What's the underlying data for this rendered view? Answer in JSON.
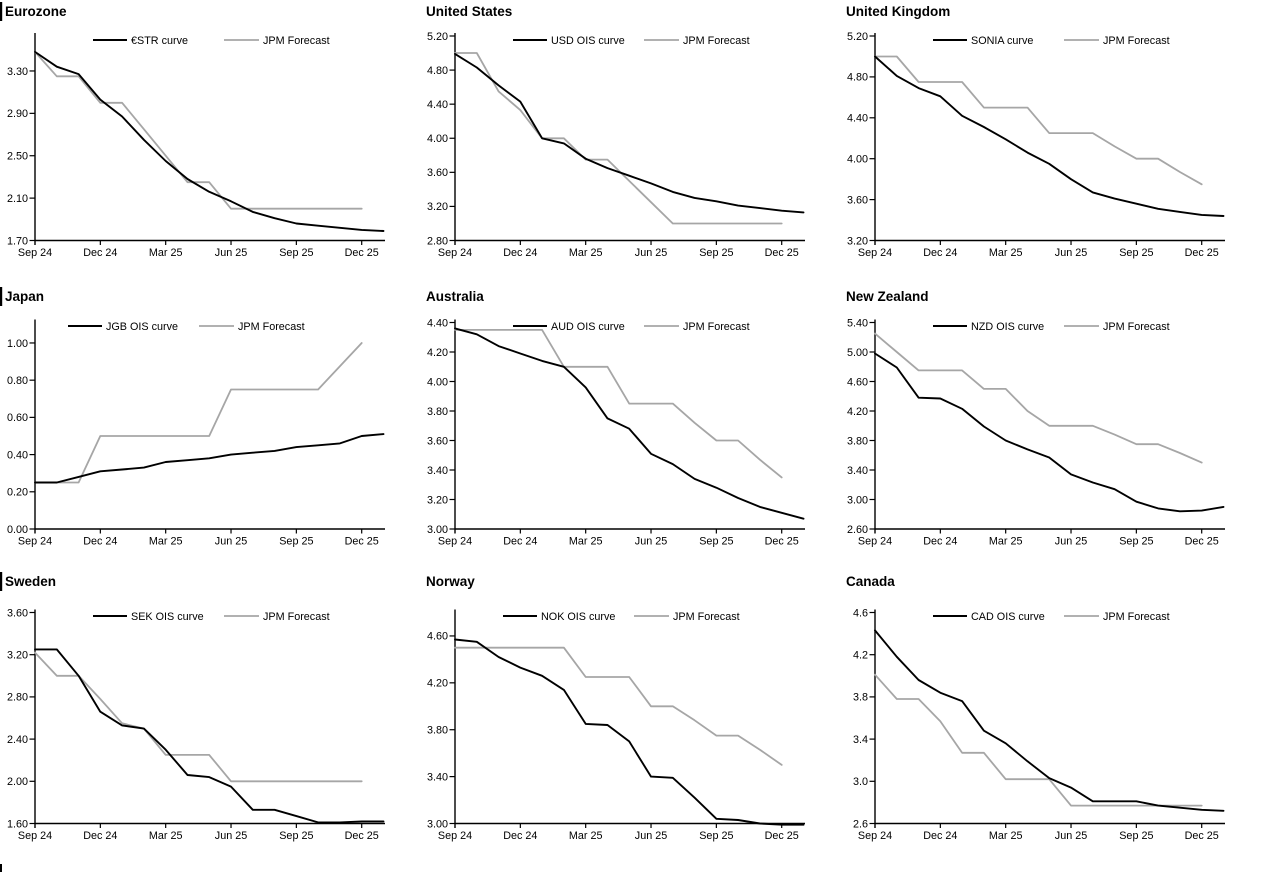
{
  "page": {
    "background": "#ffffff",
    "line_black": "#000000",
    "line_gray": "#a6a6a6"
  },
  "x_axis": {
    "tick_labels": [
      "Sep 24",
      "Dec 24",
      "Mar 25",
      "Jun 25",
      "Sep 25",
      "Dec 25"
    ],
    "tick_positions": [
      0,
      3,
      6,
      9,
      12,
      15
    ]
  },
  "chart_data": [
    {
      "type": "line",
      "title": "Eurozone",
      "left_edge_bar": true,
      "ylim": [
        1.7,
        3.63
      ],
      "y_ticks": [
        3.3,
        2.9,
        2.5,
        2.1,
        1.7
      ],
      "y_decimals": 2,
      "legend_position": "top-center",
      "grid": false,
      "series": [
        {
          "name": "€STR curve",
          "color": "#000000",
          "values": [
            3.48,
            3.34,
            3.27,
            3.03,
            2.87,
            2.65,
            2.45,
            2.28,
            2.16,
            2.07,
            1.97,
            1.91,
            1.86,
            1.84,
            1.82,
            1.8,
            1.79
          ]
        },
        {
          "name": "JPM Forecast",
          "color": "#a6a6a6",
          "values": [
            3.48,
            3.25,
            3.25,
            3.0,
            3.0,
            2.75,
            2.5,
            2.25,
            2.25,
            2.0,
            2.0,
            2.0,
            2.0,
            2.0,
            2.0,
            2.0
          ]
        }
      ]
    },
    {
      "type": "line",
      "title": "United States",
      "left_edge_bar": false,
      "ylim": [
        2.8,
        5.2
      ],
      "y_ticks": [
        5.2,
        4.8,
        4.4,
        4.0,
        3.6,
        3.2,
        2.8
      ],
      "y_decimals": 2,
      "legend_position": "top-center",
      "grid": false,
      "series": [
        {
          "name": "USD OIS curve",
          "color": "#000000",
          "values": [
            4.99,
            4.83,
            4.62,
            4.43,
            4.0,
            3.94,
            3.76,
            3.65,
            3.56,
            3.47,
            3.37,
            3.3,
            3.26,
            3.21,
            3.18,
            3.15,
            3.13
          ]
        },
        {
          "name": "JPM Forecast",
          "color": "#a6a6a6",
          "values": [
            5.0,
            5.0,
            4.55,
            4.33,
            4.0,
            4.0,
            3.75,
            3.75,
            3.5,
            3.25,
            3.0,
            3.0,
            3.0,
            3.0,
            3.0,
            3.0
          ]
        }
      ]
    },
    {
      "type": "line",
      "title": "United Kingdom",
      "left_edge_bar": false,
      "ylim": [
        3.2,
        5.2
      ],
      "y_ticks": [
        5.2,
        4.8,
        4.4,
        4.0,
        3.6,
        3.2
      ],
      "y_decimals": 2,
      "legend_position": "top-center",
      "grid": false,
      "series": [
        {
          "name": "SONIA curve",
          "color": "#000000",
          "values": [
            5.0,
            4.81,
            4.69,
            4.61,
            4.42,
            4.31,
            4.19,
            4.06,
            3.95,
            3.8,
            3.67,
            3.61,
            3.56,
            3.51,
            3.48,
            3.45,
            3.44
          ]
        },
        {
          "name": "JPM Forecast",
          "color": "#a6a6a6",
          "values": [
            5.0,
            5.0,
            4.75,
            4.75,
            4.75,
            4.5,
            4.5,
            4.5,
            4.25,
            4.25,
            4.25,
            4.12,
            4.0,
            4.0,
            3.87,
            3.75
          ]
        }
      ]
    },
    {
      "type": "line",
      "title": "Japan",
      "left_edge_bar": true,
      "ylim": [
        0.0,
        1.11
      ],
      "y_ticks": [
        1.0,
        0.8,
        0.6,
        0.4,
        0.2,
        0.0
      ],
      "y_decimals": 2,
      "legend_position": "top-center",
      "grid": false,
      "series": [
        {
          "name": "JGB OIS curve",
          "color": "#000000",
          "values": [
            0.25,
            0.25,
            0.28,
            0.31,
            0.32,
            0.33,
            0.36,
            0.37,
            0.38,
            0.4,
            0.41,
            0.42,
            0.44,
            0.45,
            0.46,
            0.5,
            0.51
          ]
        },
        {
          "name": "JPM Forecast",
          "color": "#a6a6a6",
          "values": [
            0.25,
            0.25,
            0.25,
            0.5,
            0.5,
            0.5,
            0.5,
            0.5,
            0.5,
            0.75,
            0.75,
            0.75,
            0.75,
            0.75,
            0.875,
            1.0
          ]
        }
      ]
    },
    {
      "type": "line",
      "title": "Australia",
      "left_edge_bar": false,
      "ylim": [
        3.0,
        4.4
      ],
      "y_ticks": [
        4.4,
        4.2,
        4.0,
        3.8,
        3.6,
        3.4,
        3.2,
        3.0
      ],
      "y_decimals": 2,
      "legend_position": "top-center",
      "grid": false,
      "series": [
        {
          "name": "AUD OIS curve",
          "color": "#000000",
          "values": [
            4.36,
            4.32,
            4.24,
            4.19,
            4.14,
            4.1,
            3.96,
            3.75,
            3.68,
            3.51,
            3.44,
            3.34,
            3.28,
            3.21,
            3.15,
            3.11,
            3.07
          ]
        },
        {
          "name": "JPM Forecast",
          "color": "#a6a6a6",
          "values": [
            4.35,
            4.35,
            4.35,
            4.35,
            4.35,
            4.1,
            4.1,
            4.1,
            3.85,
            3.85,
            3.85,
            3.72,
            3.6,
            3.6,
            3.47,
            3.35
          ]
        }
      ]
    },
    {
      "type": "line",
      "title": "New Zealand",
      "left_edge_bar": false,
      "ylim": [
        2.6,
        5.4
      ],
      "y_ticks": [
        5.4,
        5.0,
        4.6,
        4.2,
        3.8,
        3.4,
        3.0,
        2.6
      ],
      "y_decimals": 2,
      "legend_position": "top-center",
      "grid": false,
      "series": [
        {
          "name": "NZD OIS curve",
          "color": "#000000",
          "values": [
            4.98,
            4.79,
            4.38,
            4.37,
            4.23,
            3.99,
            3.8,
            3.68,
            3.57,
            3.34,
            3.23,
            3.14,
            2.97,
            2.88,
            2.84,
            2.85,
            2.9
          ]
        },
        {
          "name": "JPM Forecast",
          "color": "#a6a6a6",
          "values": [
            5.25,
            5.0,
            4.75,
            4.75,
            4.75,
            4.5,
            4.5,
            4.2,
            4.0,
            4.0,
            4.0,
            3.88,
            3.75,
            3.75,
            3.63,
            3.5
          ]
        }
      ]
    },
    {
      "type": "line",
      "title": "Sweden",
      "left_edge_bar": true,
      "ylim": [
        1.6,
        3.6
      ],
      "y_ticks": [
        3.6,
        3.2,
        2.8,
        2.4,
        2.0,
        1.6
      ],
      "y_decimals": 2,
      "legend_position": "top-center",
      "grid": false,
      "series": [
        {
          "name": "SEK OIS curve",
          "color": "#000000",
          "values": [
            3.25,
            3.25,
            3.0,
            2.66,
            2.53,
            2.5,
            2.3,
            2.06,
            2.04,
            1.95,
            1.73,
            1.73,
            1.67,
            1.61,
            1.61,
            1.62,
            1.62
          ]
        },
        {
          "name": "JPM Forecast",
          "color": "#a6a6a6",
          "values": [
            3.22,
            3.0,
            3.0,
            2.78,
            2.55,
            2.5,
            2.25,
            2.25,
            2.25,
            2.0,
            2.0,
            2.0,
            2.0,
            2.0,
            2.0,
            2.0
          ]
        }
      ]
    },
    {
      "type": "line",
      "title": "Norway",
      "left_edge_bar": false,
      "ylim": [
        3.0,
        4.8
      ],
      "y_ticks": [
        4.6,
        4.2,
        3.8,
        3.4,
        3.0
      ],
      "y_decimals": 2,
      "legend_position": "top-center",
      "grid": false,
      "series": [
        {
          "name": "NOK OIS curve",
          "color": "#000000",
          "values": [
            4.57,
            4.55,
            4.42,
            4.33,
            4.26,
            4.14,
            3.85,
            3.84,
            3.7,
            3.4,
            3.39,
            3.22,
            3.04,
            3.03,
            3.0,
            2.99,
            2.99
          ]
        },
        {
          "name": "JPM Forecast",
          "color": "#a6a6a6",
          "values": [
            4.5,
            4.5,
            4.5,
            4.5,
            4.5,
            4.5,
            4.25,
            4.25,
            4.25,
            4.0,
            4.0,
            3.88,
            3.75,
            3.75,
            3.63,
            3.5
          ]
        }
      ]
    },
    {
      "type": "line",
      "title": "Canada",
      "left_edge_bar": false,
      "ylim": [
        2.6,
        4.6
      ],
      "y_ticks": [
        4.6,
        4.2,
        3.8,
        3.4,
        3.0,
        2.6
      ],
      "y_decimals": 1,
      "legend_position": "top-center",
      "grid": false,
      "series": [
        {
          "name": "CAD OIS curve",
          "color": "#000000",
          "values": [
            4.43,
            4.18,
            3.96,
            3.84,
            3.76,
            3.48,
            3.36,
            3.19,
            3.03,
            2.94,
            2.81,
            2.81,
            2.81,
            2.77,
            2.75,
            2.73,
            2.72
          ]
        },
        {
          "name": "JPM Forecast",
          "color": "#a6a6a6",
          "values": [
            4.01,
            3.78,
            3.78,
            3.57,
            3.27,
            3.27,
            3.02,
            3.02,
            3.02,
            2.77,
            2.77,
            2.77,
            2.77,
            2.77,
            2.77,
            2.77
          ]
        }
      ]
    }
  ]
}
